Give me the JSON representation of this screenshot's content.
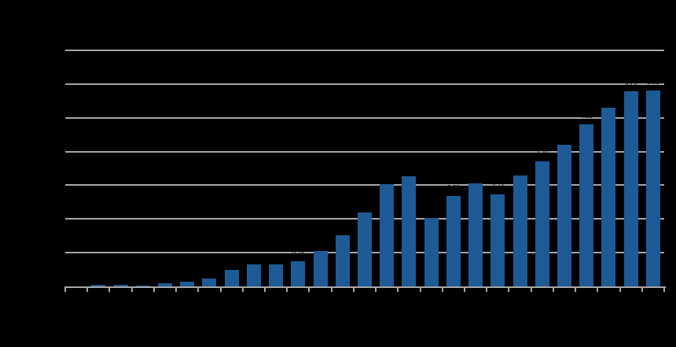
{
  "chart_data": {
    "type": "bar",
    "title": "",
    "xlabel": "",
    "ylabel": "",
    "legend_position": "none",
    "tick_labels_visible": false,
    "note": "All text in the source image is rendered black-on-black (invisible); bar values below are measured in gridline units from the pixels.",
    "values": [
      0,
      0.05,
      0.05,
      0.03,
      0.1,
      0.13,
      0.23,
      0.48,
      0.65,
      0.66,
      0.74,
      1.05,
      1.51,
      2.19,
      3.03,
      3.27,
      2.03,
      2.68,
      3.06,
      2.73,
      3.29,
      3.7,
      4.21,
      4.81,
      5.3,
      5.79,
      5.81
    ],
    "ylim": [
      0,
      7
    ],
    "gridline_count": 7,
    "gridline_step": 1,
    "x_tick_count": 28,
    "grid_on": true,
    "colors": {
      "background": "#000000",
      "bar": "#1E5A96",
      "gridline": "#A6A6A6",
      "axis": "#A6A6A6",
      "data_label": "#000000"
    }
  }
}
